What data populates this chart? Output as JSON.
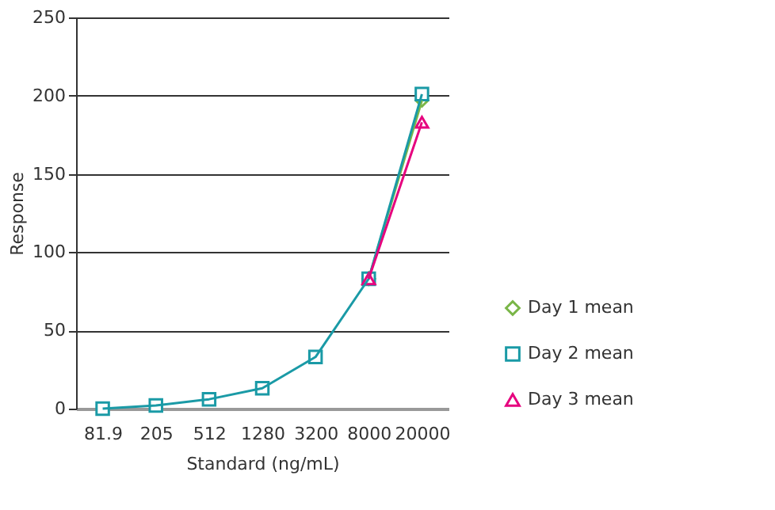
{
  "chart_data": {
    "type": "line",
    "xlabel": "Standard (ng/mL)",
    "ylabel": "Response",
    "categories": [
      "81.9",
      "205",
      "512",
      "1280",
      "3200",
      "8000",
      "20000"
    ],
    "series": [
      {
        "name": "Day 1 mean",
        "color": "#7ab648",
        "marker": "diamond",
        "values": [
          null,
          null,
          null,
          null,
          null,
          83,
          197
        ]
      },
      {
        "name": "Day 2 mean",
        "color": "#1a9aa6",
        "marker": "square",
        "values": [
          0,
          2,
          6,
          13,
          33,
          83,
          201
        ]
      },
      {
        "name": "Day 3 mean",
        "color": "#e6007e",
        "marker": "triangle",
        "values": [
          null,
          null,
          null,
          null,
          null,
          83,
          183
        ]
      }
    ],
    "ylim": [
      0,
      250
    ],
    "yticks": [
      0,
      50,
      100,
      150,
      200,
      250
    ],
    "grid": "y",
    "legend": "right",
    "line_style": "solid"
  }
}
